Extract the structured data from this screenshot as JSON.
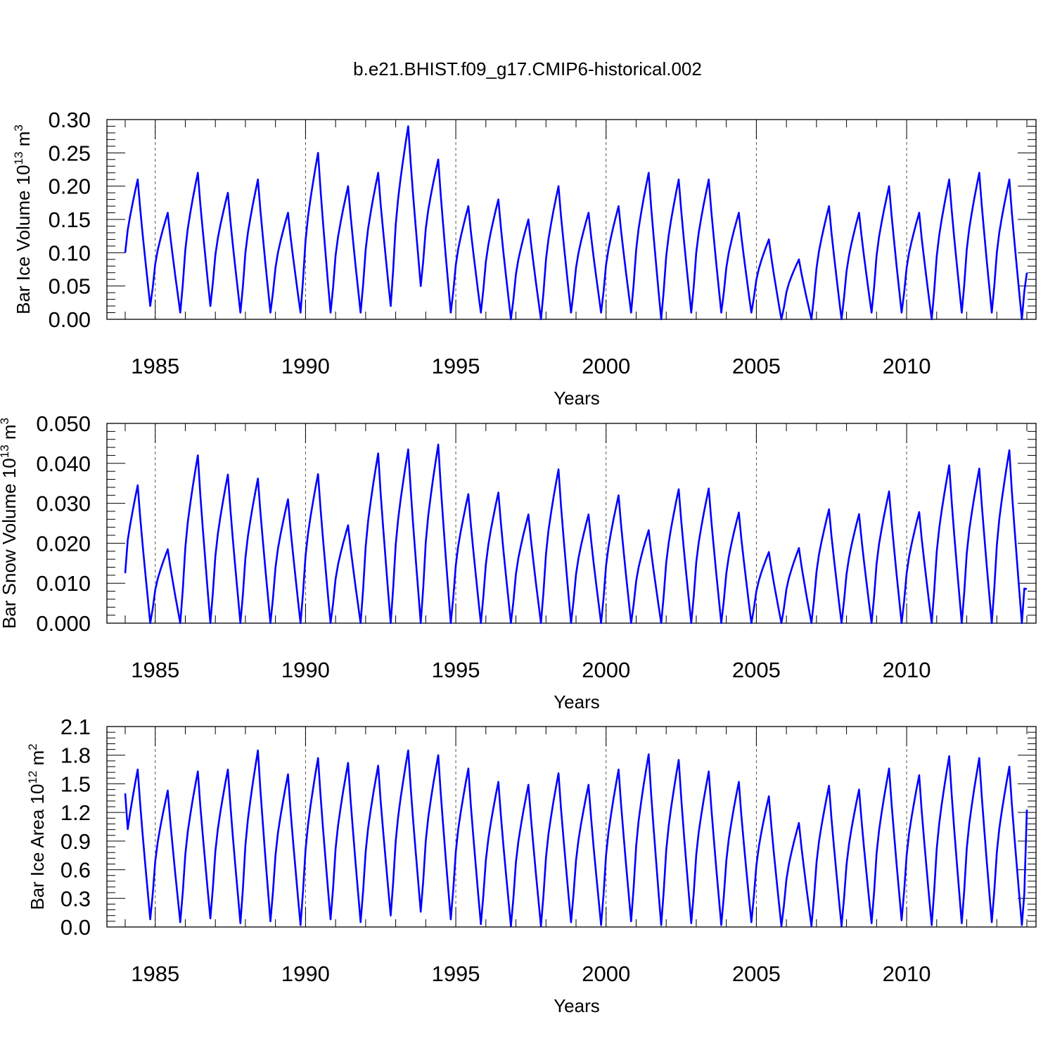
{
  "title": "b.e21.BHIST.f09_g17.CMIP6-historical.002",
  "line_color": "#0000ff",
  "chart_data": [
    {
      "type": "line",
      "title": "",
      "xlabel": "Years",
      "ylabel": "Bar Ice Volume 10",
      "ylabel_exp": "13",
      "ylabel_unit": " m",
      "ylabel_unit_exp": "3",
      "xlim": [
        1984.0,
        2014.0
      ],
      "ylim": [
        0.0,
        0.3
      ],
      "yticks": [
        0.0,
        0.05,
        0.1,
        0.15,
        0.2,
        0.25,
        0.3
      ],
      "ytick_labels": [
        "0.00",
        "0.05",
        "0.10",
        "0.15",
        "0.20",
        "0.25",
        "0.30"
      ],
      "xticks": [
        1985,
        1990,
        1995,
        2000,
        2005,
        2010
      ],
      "xtick_labels": [
        "1985",
        "1990",
        "1995",
        "2000",
        "2005",
        "2010"
      ],
      "grid_x": "dashed vertical lines at labeled years",
      "series": [
        {
          "seasonal_peaks": [
            0.21,
            0.16,
            0.22,
            0.19,
            0.21,
            0.16,
            0.25,
            0.2,
            0.22,
            0.29,
            0.24,
            0.17,
            0.18,
            0.15,
            0.2,
            0.16,
            0.17,
            0.22,
            0.21,
            0.21,
            0.16,
            0.12,
            0.09,
            0.17,
            0.16,
            0.2,
            0.16,
            0.21,
            0.22,
            0.21
          ],
          "seasonal_minima": [
            0.02,
            0.01,
            0.02,
            0.01,
            0.01,
            0.01,
            0.01,
            0.01,
            0.02,
            0.05,
            0.01,
            0.01,
            0.0,
            0.0,
            0.01,
            0.01,
            0.01,
            0.0,
            0.01,
            0.01,
            0.01,
            0.0,
            0.0,
            0.0,
            0.01,
            0.01,
            0.0,
            0.01,
            0.01,
            0.0
          ],
          "start_value": 0.1,
          "end_value": 0.07
        }
      ]
    },
    {
      "type": "line",
      "title": "",
      "xlabel": "Years",
      "ylabel": "Bar Snow Volume 10",
      "ylabel_exp": "13",
      "ylabel_unit": " m",
      "ylabel_unit_exp": "3",
      "xlim": [
        1984.0,
        2014.0
      ],
      "ylim": [
        0.0,
        0.05
      ],
      "yticks": [
        0.0,
        0.01,
        0.02,
        0.03,
        0.04,
        0.05
      ],
      "ytick_labels": [
        "0.000",
        "0.010",
        "0.020",
        "0.030",
        "0.040",
        "0.050"
      ],
      "xticks": [
        1985,
        1990,
        1995,
        2000,
        2005,
        2010
      ],
      "xtick_labels": [
        "1985",
        "1990",
        "1995",
        "2000",
        "2005",
        "2010"
      ],
      "grid_x": "dashed vertical lines at labeled years",
      "series": [
        {
          "seasonal_peaks": [
            0.0345,
            0.0185,
            0.042,
            0.0372,
            0.0362,
            0.031,
            0.0373,
            0.0245,
            0.0425,
            0.0435,
            0.0447,
            0.0323,
            0.0327,
            0.0272,
            0.0385,
            0.0272,
            0.032,
            0.0233,
            0.0335,
            0.0337,
            0.0277,
            0.0178,
            0.0188,
            0.0285,
            0.0273,
            0.033,
            0.0278,
            0.0395,
            0.0387,
            0.0433
          ],
          "seasonal_minima": [
            0.0,
            0.0,
            0.0,
            0.0,
            0.0,
            0.0,
            0.0,
            0.0,
            0.0,
            0.0,
            0.0,
            0.0,
            0.0,
            0.0,
            0.0,
            0.0,
            0.0,
            0.0,
            0.0,
            0.0,
            0.0,
            0.0,
            0.0,
            0.0,
            0.0,
            0.0,
            0.0,
            0.0,
            0.0,
            0.0
          ],
          "start_value": 0.0125,
          "end_value": 0.0085
        }
      ]
    },
    {
      "type": "line",
      "title": "",
      "xlabel": "Years",
      "ylabel": "Bar Ice Area 10",
      "ylabel_exp": "12",
      "ylabel_unit": " m",
      "ylabel_unit_exp": "2",
      "xlim": [
        1984.0,
        2014.0
      ],
      "ylim": [
        0.0,
        2.1
      ],
      "yticks": [
        0.0,
        0.3,
        0.6,
        0.9,
        1.2,
        1.5,
        1.8,
        2.1
      ],
      "ytick_labels": [
        "0.0",
        "0.3",
        "0.6",
        "0.9",
        "1.2",
        "1.5",
        "1.8",
        "2.1"
      ],
      "xticks": [
        1985,
        1990,
        1995,
        2000,
        2005,
        2010
      ],
      "xtick_labels": [
        "1985",
        "1990",
        "1995",
        "2000",
        "2005",
        "2010"
      ],
      "grid_x": "dashed vertical lines at labeled years",
      "series": [
        {
          "seasonal_peaks": [
            1.65,
            1.43,
            1.63,
            1.65,
            1.85,
            1.6,
            1.77,
            1.72,
            1.69,
            1.85,
            1.8,
            1.66,
            1.52,
            1.49,
            1.61,
            1.49,
            1.65,
            1.81,
            1.75,
            1.63,
            1.52,
            1.37,
            1.09,
            1.48,
            1.44,
            1.66,
            1.59,
            1.79,
            1.77,
            1.68
          ],
          "seasonal_minima": [
            0.08,
            0.05,
            0.09,
            0.04,
            0.06,
            0.02,
            0.08,
            0.05,
            0.12,
            0.16,
            0.08,
            0.03,
            0.01,
            0.01,
            0.05,
            0.02,
            0.06,
            0.02,
            0.04,
            0.02,
            0.05,
            0.01,
            0.01,
            0.01,
            0.04,
            0.07,
            0.02,
            0.04,
            0.05,
            0.02
          ],
          "start_value": 1.4,
          "end_value": 1.23
        }
      ]
    }
  ]
}
